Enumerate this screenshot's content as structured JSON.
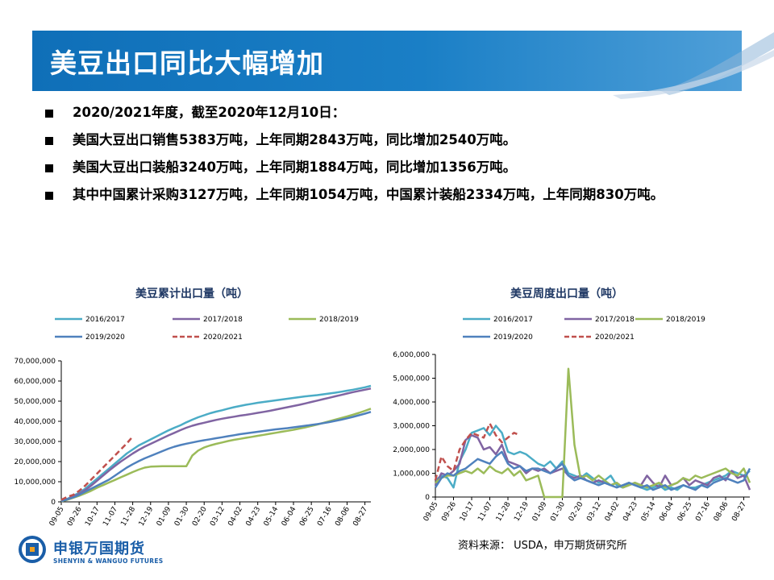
{
  "page": {
    "title": "美豆出口同比大幅增加",
    "bullets": [
      "2020/2021年度，截至2020年12月10日：",
      "美国大豆出口销售5383万吨，上年同期2843万吨，同比增加2540万吨。",
      "美国大豆出口装船3240万吨，上年同期1884万吨，同比增加1356万吨。",
      "其中中国累计采购3127万吨，上年同期1054万吨，中国累计装船2334万吨，上年同期830万吨。"
    ],
    "source": "资料来源： USDA，申万期货研究所",
    "logo": {
      "cn": "申银万国期货",
      "en": "SHENYIN & WANGUO FUTURES"
    },
    "colors": {
      "banner": "#1a7fc6",
      "s2016": "#4bacc6",
      "s2017": "#8064a2",
      "s2018": "#9bbb59",
      "s2019": "#4f81bd",
      "s2020": "#c0504d"
    }
  },
  "chart_data": [
    {
      "type": "line",
      "title": "美豆累计出口量（吨）",
      "xlabel": "",
      "ylabel": "",
      "x": [
        "09-05",
        "09-12",
        "09-19",
        "09-26",
        "10-03",
        "10-10",
        "10-17",
        "10-24",
        "10-31",
        "11-07",
        "11-14",
        "11-21",
        "11-28",
        "12-05",
        "12-12",
        "12-19",
        "12-26",
        "01-02",
        "01-09",
        "01-16",
        "01-23",
        "01-30",
        "02-06",
        "02-13",
        "02-20",
        "02-27",
        "03-05",
        "03-12",
        "03-19",
        "03-26",
        "04-02",
        "04-09",
        "04-16",
        "04-23",
        "04-30",
        "05-07",
        "05-14",
        "05-21",
        "05-28",
        "06-04",
        "06-11",
        "06-18",
        "06-25",
        "07-02",
        "07-09",
        "07-16",
        "07-23",
        "07-30",
        "08-06",
        "08-13",
        "08-20",
        "08-27",
        "09-03"
      ],
      "x_tick_labels": [
        "09-05",
        "09-26",
        "10-17",
        "11-07",
        "11-28",
        "12-19",
        "01-09",
        "01-30",
        "02-20",
        "03-12",
        "04-02",
        "04-23",
        "05-14",
        "06-04",
        "06-25",
        "07-16",
        "08-06",
        "08-27"
      ],
      "ylim": [
        0,
        70000000
      ],
      "y_ticks": [
        "0",
        "10,000,000",
        "20,000,000",
        "30,000,000",
        "40,000,000",
        "50,000,000",
        "60,000,000",
        "70,000,000"
      ],
      "legend_position": "top",
      "grid": false,
      "series": [
        {
          "name": "2016/2017",
          "values": [
            500000,
            1500000,
            3000000,
            4500000,
            6500000,
            9000000,
            11500000,
            14000000,
            16500000,
            19000000,
            21500000,
            24000000,
            26000000,
            28000000,
            29500000,
            31000000,
            32500000,
            34000000,
            35500000,
            36800000,
            38000000,
            39500000,
            40800000,
            42000000,
            43000000,
            44000000,
            44800000,
            45500000,
            46300000,
            47000000,
            47600000,
            48200000,
            48700000,
            49200000,
            49600000,
            50000000,
            50400000,
            50800000,
            51200000,
            51600000,
            52000000,
            52400000,
            52700000,
            53000000,
            53400000,
            53800000,
            54200000,
            54700000,
            55200000,
            55700000,
            56300000,
            56900000,
            57600000
          ]
        },
        {
          "name": "2017/2018",
          "values": [
            400000,
            1300000,
            2600000,
            4000000,
            5800000,
            8000000,
            10500000,
            13000000,
            15500000,
            17800000,
            20000000,
            22000000,
            24000000,
            25800000,
            27400000,
            28800000,
            30200000,
            31600000,
            33000000,
            34300000,
            35600000,
            36800000,
            37800000,
            38600000,
            39300000,
            40000000,
            40700000,
            41300000,
            41800000,
            42300000,
            42800000,
            43200000,
            43700000,
            44200000,
            44700000,
            45200000,
            45800000,
            46400000,
            47000000,
            47600000,
            48200000,
            48900000,
            49600000,
            50300000,
            51000000,
            51700000,
            52400000,
            53100000,
            53800000,
            54500000,
            55100000,
            55700000,
            56300000
          ]
        },
        {
          "name": "2018/2019",
          "values": [
            300000,
            1000000,
            2000000,
            3000000,
            4200000,
            5500000,
            7000000,
            8300000,
            9600000,
            10900000,
            12200000,
            13500000,
            14800000,
            16000000,
            17000000,
            17500000,
            17600000,
            17700000,
            17700000,
            17700000,
            17700000,
            17700000,
            23000000,
            25500000,
            27000000,
            28000000,
            28800000,
            29500000,
            30200000,
            30800000,
            31300000,
            31800000,
            32300000,
            32800000,
            33300000,
            33800000,
            34300000,
            34800000,
            35300000,
            35800000,
            36400000,
            37000000,
            37700000,
            38400000,
            39200000,
            40000000,
            40800000,
            41600000,
            42400000,
            43300000,
            44200000,
            45200000,
            46300000
          ]
        },
        {
          "name": "2019/2020",
          "values": [
            400000,
            1200000,
            2200000,
            3500000,
            5000000,
            6500000,
            8000000,
            9500000,
            11000000,
            13000000,
            15000000,
            17000000,
            18700000,
            20200000,
            21600000,
            22800000,
            24000000,
            25200000,
            26400000,
            27400000,
            28200000,
            28900000,
            29500000,
            30100000,
            30600000,
            31100000,
            31600000,
            32100000,
            32600000,
            33100000,
            33600000,
            34000000,
            34400000,
            34800000,
            35200000,
            35600000,
            36000000,
            36300000,
            36600000,
            37000000,
            37400000,
            37800000,
            38200000,
            38600000,
            39100000,
            39600000,
            40200000,
            40800000,
            41500000,
            42200000,
            43000000,
            43800000,
            44700000
          ]
        },
        {
          "name": "2020/2021",
          "values": [
            1000000,
            2500000,
            3500000,
            5500000,
            8000000,
            11000000,
            14000000,
            17000000,
            20000000,
            23000000,
            26000000,
            29000000,
            32400000,
            null,
            null,
            null,
            null,
            null,
            null,
            null,
            null,
            null,
            null,
            null,
            null,
            null,
            null,
            null,
            null,
            null,
            null,
            null,
            null,
            null,
            null,
            null,
            null,
            null,
            null,
            null,
            null,
            null,
            null,
            null,
            null,
            null,
            null,
            null,
            null,
            null,
            null,
            null,
            null
          ]
        }
      ]
    },
    {
      "type": "line",
      "title": "美豆周度出口量（吨）",
      "xlabel": "",
      "ylabel": "",
      "x": [
        "09-05",
        "09-12",
        "09-19",
        "09-26",
        "10-03",
        "10-10",
        "10-17",
        "10-24",
        "10-31",
        "11-07",
        "11-14",
        "11-21",
        "11-28",
        "12-05",
        "12-12",
        "12-19",
        "12-26",
        "01-02",
        "01-09",
        "01-16",
        "01-23",
        "01-30",
        "02-06",
        "02-13",
        "02-20",
        "02-27",
        "03-05",
        "03-12",
        "03-19",
        "03-26",
        "04-02",
        "04-09",
        "04-16",
        "04-23",
        "04-30",
        "05-07",
        "05-14",
        "05-21",
        "05-28",
        "06-04",
        "06-11",
        "06-18",
        "06-25",
        "07-02",
        "07-09",
        "07-16",
        "07-23",
        "07-30",
        "08-06",
        "08-13",
        "08-20",
        "08-27",
        "09-03"
      ],
      "x_tick_labels": [
        "09-05",
        "09-26",
        "10-17",
        "11-07",
        "11-28",
        "12-19",
        "01-09",
        "01-30",
        "02-20",
        "03-12",
        "04-02",
        "04-23",
        "05-14",
        "06-04",
        "06-25",
        "07-16",
        "08-06",
        "08-27"
      ],
      "ylim": [
        0,
        6000000
      ],
      "y_ticks": [
        "0",
        "1,000,000",
        "2,000,000",
        "3,000,000",
        "4,000,000",
        "5,000,000",
        "6,000,000"
      ],
      "legend_position": "top",
      "grid": false,
      "series": [
        {
          "name": "2016/2017",
          "values": [
            700000,
            900000,
            800000,
            400000,
            1500000,
            2000000,
            2700000,
            2800000,
            2900000,
            2600000,
            3000000,
            2700000,
            1900000,
            1800000,
            1900000,
            1800000,
            1600000,
            1400000,
            1300000,
            1500000,
            1200000,
            1500000,
            1000000,
            900000,
            800000,
            1000000,
            800000,
            600000,
            700000,
            900000,
            500000,
            400000,
            600000,
            500000,
            400000,
            300000,
            400000,
            500000,
            300000,
            400000,
            300000,
            500000,
            400000,
            400000,
            500000,
            600000,
            700000,
            800000,
            900000,
            1100000,
            1000000,
            900000,
            1100000
          ]
        },
        {
          "name": "2017/2018",
          "values": [
            500000,
            1000000,
            900000,
            1100000,
            1400000,
            2400000,
            2600000,
            2500000,
            2000000,
            2100000,
            1800000,
            2200000,
            1500000,
            1400000,
            1300000,
            1000000,
            1200000,
            1100000,
            1200000,
            1000000,
            1100000,
            1200000,
            900000,
            800000,
            900000,
            700000,
            600000,
            700000,
            600000,
            500000,
            600000,
            400000,
            500000,
            600000,
            500000,
            900000,
            600000,
            400000,
            900000,
            500000,
            600000,
            800000,
            500000,
            700000,
            600000,
            500000,
            800000,
            900000,
            700000,
            1100000,
            800000,
            900000,
            300000
          ]
        },
        {
          "name": "2018/2019",
          "values": [
            600000,
            800000,
            900000,
            900000,
            1000000,
            1100000,
            1000000,
            1200000,
            1000000,
            1300000,
            1100000,
            1000000,
            1200000,
            900000,
            1100000,
            700000,
            800000,
            900000,
            0,
            0,
            0,
            0,
            5400000,
            2200000,
            800000,
            900000,
            700000,
            900000,
            700000,
            500000,
            600000,
            400000,
            500000,
            600000,
            500000,
            400000,
            500000,
            600000,
            400000,
            500000,
            600000,
            800000,
            700000,
            900000,
            800000,
            900000,
            1000000,
            1100000,
            1200000,
            1000000,
            900000,
            1200000,
            600000
          ]
        },
        {
          "name": "2019/2020",
          "values": [
            400000,
            800000,
            1000000,
            900000,
            1100000,
            1200000,
            1400000,
            1600000,
            1500000,
            1400000,
            1700000,
            1900000,
            1400000,
            1200000,
            1300000,
            1100000,
            1200000,
            1200000,
            1100000,
            1000000,
            1200000,
            1400000,
            900000,
            700000,
            800000,
            700000,
            600000,
            500000,
            600000,
            500000,
            400000,
            500000,
            600000,
            500000,
            400000,
            500000,
            300000,
            400000,
            500000,
            300000,
            400000,
            500000,
            400000,
            300000,
            500000,
            400000,
            600000,
            700000,
            800000,
            700000,
            600000,
            700000,
            1200000
          ]
        },
        {
          "name": "2020/2021",
          "values": [
            700000,
            1700000,
            1300000,
            1100000,
            2000000,
            2400000,
            2700000,
            2600000,
            2500000,
            3100000,
            2600000,
            2300000,
            2500000,
            2700000,
            2600000,
            null,
            null,
            null,
            null,
            null,
            null,
            null,
            null,
            null,
            null,
            null,
            null,
            null,
            null,
            null,
            null,
            null,
            null,
            null,
            null,
            null,
            null,
            null,
            null,
            null,
            null,
            null,
            null,
            null,
            null,
            null,
            null,
            null,
            null,
            null,
            null,
            null,
            null
          ]
        }
      ]
    }
  ]
}
